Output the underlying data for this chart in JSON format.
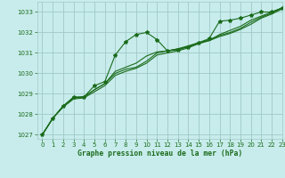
{
  "title": "Graphe pression niveau de la mer (hPa)",
  "background_color": "#c8ecec",
  "grid_color": "#a0c8c8",
  "line_color": "#1a6b1a",
  "xlim": [
    -0.5,
    23
  ],
  "ylim": [
    1026.8,
    1033.5
  ],
  "yticks": [
    1027,
    1028,
    1029,
    1030,
    1031,
    1032,
    1033
  ],
  "xticks": [
    0,
    1,
    2,
    3,
    4,
    5,
    6,
    7,
    8,
    9,
    10,
    11,
    12,
    13,
    14,
    15,
    16,
    17,
    18,
    19,
    20,
    21,
    22,
    23
  ],
  "series": [
    [
      1027.0,
      1027.8,
      1028.4,
      1028.85,
      1028.85,
      1029.4,
      1029.6,
      1030.9,
      1031.55,
      1031.9,
      1032.0,
      1031.65,
      1031.1,
      1031.15,
      1031.3,
      1031.5,
      1031.7,
      1032.55,
      1032.6,
      1032.7,
      1032.85,
      1033.0,
      1033.0,
      1033.2
    ],
    [
      1027.0,
      1027.8,
      1028.4,
      1028.8,
      1028.85,
      1029.2,
      1029.5,
      1030.1,
      1030.3,
      1030.5,
      1030.85,
      1031.05,
      1031.1,
      1031.2,
      1031.3,
      1031.5,
      1031.6,
      1031.9,
      1032.1,
      1032.3,
      1032.6,
      1032.8,
      1033.0,
      1033.2
    ],
    [
      1027.0,
      1027.8,
      1028.4,
      1028.8,
      1028.85,
      1029.2,
      1029.5,
      1030.0,
      1030.2,
      1030.3,
      1030.6,
      1031.0,
      1031.1,
      1031.2,
      1031.35,
      1031.5,
      1031.65,
      1031.85,
      1032.0,
      1032.2,
      1032.5,
      1032.75,
      1032.95,
      1033.2
    ],
    [
      1027.0,
      1027.8,
      1028.35,
      1028.75,
      1028.8,
      1029.1,
      1029.4,
      1029.9,
      1030.1,
      1030.25,
      1030.5,
      1030.9,
      1031.0,
      1031.1,
      1031.25,
      1031.45,
      1031.6,
      1031.8,
      1031.95,
      1032.15,
      1032.4,
      1032.7,
      1032.9,
      1033.15
    ]
  ]
}
